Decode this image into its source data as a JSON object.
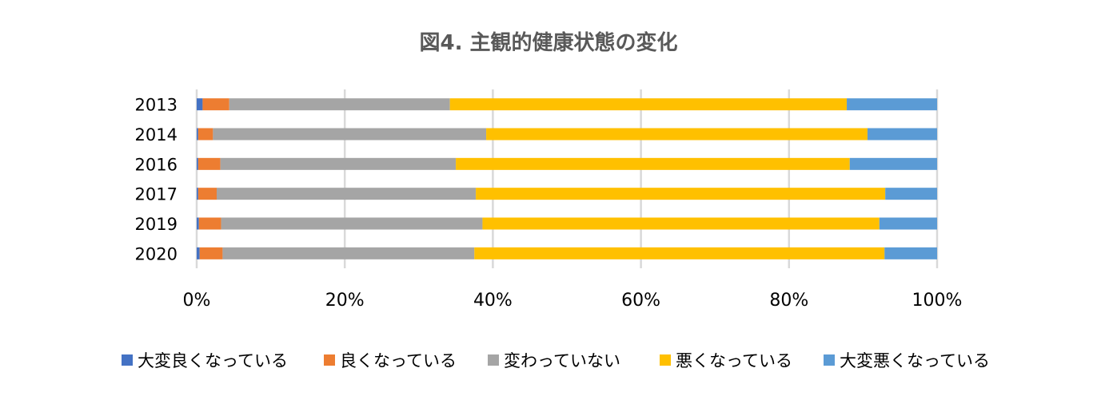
{
  "chart_data": {
    "type": "bar",
    "orientation": "horizontal",
    "stacked": "percent",
    "title": "図4. 主観的健康状態の変化",
    "xlabel": "",
    "ylabel": "",
    "categories": [
      "2013",
      "2014",
      "2016",
      "2017",
      "2019",
      "2020"
    ],
    "xlim": [
      0,
      100
    ],
    "x_ticks": [
      "0%",
      "20%",
      "40%",
      "60%",
      "80%",
      "100%"
    ],
    "grid": true,
    "legend_position": "bottom",
    "series": [
      {
        "name": "大変良くなっている",
        "color": "#4472C4",
        "values": [
          0.8,
          0.2,
          0.2,
          0.2,
          0.3,
          0.4
        ]
      },
      {
        "name": "良くなっている",
        "color": "#ED7D31",
        "values": [
          3.6,
          2.0,
          3.0,
          2.5,
          3.0,
          3.1
        ]
      },
      {
        "name": "変わっていない",
        "color": "#A5A5A5",
        "values": [
          29.8,
          36.9,
          31.8,
          35.0,
          35.3,
          34.0
        ]
      },
      {
        "name": "悪くなっている",
        "color": "#FFC000",
        "values": [
          53.6,
          51.5,
          53.2,
          55.3,
          53.6,
          55.4
        ]
      },
      {
        "name": "大変悪くなっている",
        "color": "#5B9BD5",
        "values": [
          12.2,
          9.4,
          11.8,
          7.0,
          7.8,
          7.1
        ]
      }
    ]
  }
}
